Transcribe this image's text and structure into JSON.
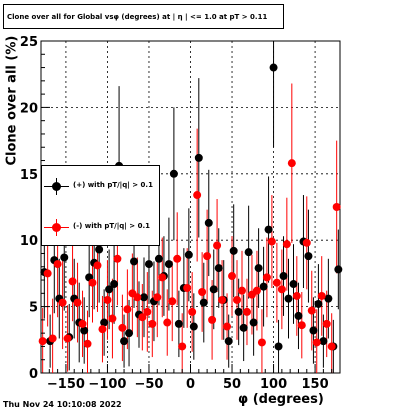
{
  "chart_data": {
    "type": "scatter",
    "title": "Clone  over all for Global vsφ (degrees) at | η | <= 1.0 at pT > 0.11",
    "xlabel": "φ (degrees)",
    "ylabel": "Clone  over all (%)",
    "xlim": [
      -180,
      180
    ],
    "ylim": [
      0,
      25
    ],
    "x_ticks": [
      "−150",
      "−100",
      "−50",
      "0",
      "50",
      "100",
      "150"
    ],
    "y_ticks": [
      "0",
      "5",
      "10",
      "15",
      "20",
      "25"
    ],
    "grid": true,
    "legend_position": "middle-left",
    "series": [
      {
        "name": "(+) with pT/|q| > 0.1",
        "color": "#000000",
        "points": [
          [
            -176,
            7.6,
            3.5
          ],
          [
            -169,
            2.4,
            2.0
          ],
          [
            -164,
            8.5,
            4.0
          ],
          [
            -158,
            5.6,
            3.0
          ],
          [
            -152,
            8.7,
            4.0
          ],
          [
            -146,
            2.7,
            2.5
          ],
          [
            -140,
            5.6,
            3.0
          ],
          [
            -134,
            3.8,
            3.0
          ],
          [
            -128,
            3.2,
            2.5
          ],
          [
            -122,
            7.2,
            3.0
          ],
          [
            -116,
            8.3,
            3.5
          ],
          [
            -110,
            9.3,
            4.0
          ],
          [
            -104,
            3.8,
            2.5
          ],
          [
            -98,
            6.3,
            3.0
          ],
          [
            -92,
            6.7,
            3.0
          ],
          [
            -86,
            15.6,
            6.0
          ],
          [
            -80,
            2.4,
            2.0
          ],
          [
            -74,
            3.0,
            2.5
          ],
          [
            -68,
            8.4,
            3.5
          ],
          [
            -62,
            4.4,
            2.5
          ],
          [
            -56,
            5.7,
            3.0
          ],
          [
            -50,
            8.2,
            3.0
          ],
          [
            -44,
            5.4,
            3.0
          ],
          [
            -38,
            8.6,
            3.5
          ],
          [
            -32,
            7.3,
            3.0
          ],
          [
            -26,
            8.2,
            3.5
          ],
          [
            -20,
            15.0,
            5.0
          ],
          [
            -14,
            3.7,
            2.5
          ],
          [
            -8,
            6.4,
            3.0
          ],
          [
            -2,
            8.9,
            3.5
          ],
          [
            4,
            3.5,
            2.5
          ],
          [
            10,
            16.2,
            6.0
          ],
          [
            16,
            5.3,
            3.0
          ],
          [
            22,
            11.3,
            4.0
          ],
          [
            28,
            6.3,
            3.0
          ],
          [
            34,
            7.9,
            3.0
          ],
          [
            40,
            5.5,
            3.0
          ],
          [
            46,
            2.4,
            2.0
          ],
          [
            52,
            9.2,
            3.5
          ],
          [
            58,
            4.6,
            2.5
          ],
          [
            64,
            3.4,
            2.5
          ],
          [
            70,
            9.1,
            3.5
          ],
          [
            76,
            3.8,
            2.5
          ],
          [
            82,
            7.9,
            3.0
          ],
          [
            88,
            6.5,
            3.0
          ],
          [
            94,
            10.8,
            4.0
          ],
          [
            100,
            23.0,
            6.0
          ],
          [
            106,
            2.0,
            2.0
          ],
          [
            112,
            7.3,
            3.0
          ],
          [
            118,
            5.6,
            3.0
          ],
          [
            124,
            6.7,
            3.0
          ],
          [
            130,
            4.3,
            2.5
          ],
          [
            136,
            9.9,
            3.5
          ],
          [
            142,
            8.8,
            3.5
          ],
          [
            148,
            3.2,
            2.5
          ],
          [
            154,
            5.2,
            3.0
          ],
          [
            160,
            2.4,
            2.0
          ],
          [
            166,
            5.6,
            3.0
          ],
          [
            172,
            2.0,
            2.0
          ],
          [
            178,
            7.8,
            3.0
          ]
        ]
      },
      {
        "name": "(-) with pT/|q| > 0.1",
        "color": "#ff0000",
        "points": [
          [
            -178,
            2.4,
            2.5
          ],
          [
            -172,
            7.5,
            4.0
          ],
          [
            -166,
            2.6,
            3.0
          ],
          [
            -160,
            8.2,
            4.0
          ],
          [
            -154,
            5.3,
            3.5
          ],
          [
            -148,
            2.6,
            2.5
          ],
          [
            -142,
            6.9,
            3.0
          ],
          [
            -136,
            5.3,
            3.0
          ],
          [
            -130,
            3.7,
            2.5
          ],
          [
            -124,
            2.2,
            2.5
          ],
          [
            -118,
            6.8,
            3.0
          ],
          [
            -112,
            8.1,
            3.5
          ],
          [
            -106,
            3.3,
            2.5
          ],
          [
            -100,
            5.5,
            3.0
          ],
          [
            -94,
            4.1,
            3.0
          ],
          [
            -88,
            8.6,
            3.5
          ],
          [
            -82,
            3.4,
            2.5
          ],
          [
            -76,
            4.8,
            3.0
          ],
          [
            -70,
            6.0,
            3.0
          ],
          [
            -64,
            5.7,
            3.0
          ],
          [
            -58,
            4.2,
            2.5
          ],
          [
            -52,
            4.6,
            3.0
          ],
          [
            -46,
            3.7,
            2.5
          ],
          [
            -40,
            5.7,
            3.0
          ],
          [
            -34,
            7.2,
            3.0
          ],
          [
            -28,
            3.8,
            2.5
          ],
          [
            -22,
            5.4,
            3.0
          ],
          [
            -16,
            8.6,
            3.5
          ],
          [
            -10,
            2.0,
            2.5
          ],
          [
            -4,
            6.4,
            3.0
          ],
          [
            2,
            4.6,
            3.0
          ],
          [
            8,
            13.4,
            5.0
          ],
          [
            14,
            6.1,
            3.0
          ],
          [
            20,
            8.8,
            3.5
          ],
          [
            26,
            4.0,
            3.0
          ],
          [
            32,
            9.6,
            3.5
          ],
          [
            38,
            5.5,
            3.0
          ],
          [
            44,
            3.5,
            2.5
          ],
          [
            50,
            7.3,
            3.0
          ],
          [
            56,
            5.5,
            3.0
          ],
          [
            62,
            6.2,
            3.0
          ],
          [
            68,
            4.6,
            2.5
          ],
          [
            74,
            5.9,
            3.0
          ],
          [
            80,
            6.2,
            3.0
          ],
          [
            86,
            2.3,
            2.5
          ],
          [
            92,
            7.2,
            3.0
          ],
          [
            98,
            9.9,
            3.5
          ],
          [
            104,
            6.8,
            3.0
          ],
          [
            110,
            6.3,
            3.0
          ],
          [
            116,
            9.7,
            3.5
          ],
          [
            122,
            15.8,
            6.0
          ],
          [
            128,
            5.8,
            3.0
          ],
          [
            134,
            3.6,
            2.5
          ],
          [
            140,
            9.8,
            3.5
          ],
          [
            146,
            4.7,
            3.0
          ],
          [
            152,
            2.3,
            2.5
          ],
          [
            158,
            5.8,
            3.0
          ],
          [
            164,
            3.7,
            2.5
          ],
          [
            170,
            2.0,
            2.5
          ],
          [
            176,
            12.5,
            5.0
          ]
        ]
      }
    ]
  },
  "footer": {
    "timestamp": "Thu Nov 24 10:10:08 2022"
  }
}
